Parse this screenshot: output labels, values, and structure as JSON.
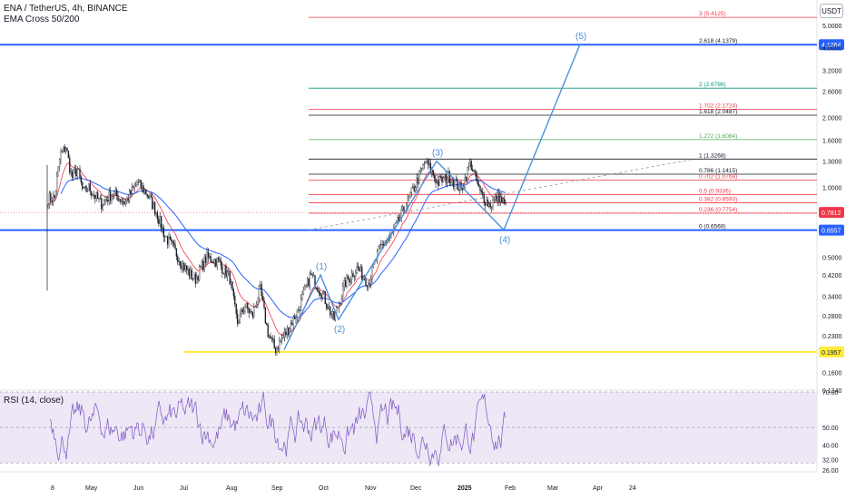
{
  "header": {
    "symbol": "ENA / TetherUS, 4h, BINANCE",
    "indicator": "EMA Cross 50/200"
  },
  "unit_badge": "USDT",
  "chart_data": [
    {
      "type": "candlestick",
      "title": "ENA / TetherUS, 4h, BINANCE",
      "yscale": "log",
      "ylim": [
        0.134,
        6.2
      ],
      "price_axis_ticks": [
        "5.0000",
        "4.0000",
        "3.2000",
        "2.6000",
        "2.0000",
        "1.6000",
        "1.3000",
        "1.0000",
        "0.5000",
        "0.4200",
        "0.3400",
        "0.2800",
        "0.2300",
        "0.1600",
        "0.1340"
      ],
      "x_ticks": [
        "8",
        "May",
        "Jun",
        "Jul",
        "Aug",
        "Sep",
        "Oct",
        "Nov",
        "Dec",
        "2025",
        "Feb",
        "Mar",
        "Apr",
        "24"
      ],
      "price_path": [
        [
          "8",
          0.9
        ],
        [
          "8",
          1.38
        ],
        [
          "8",
          1.5
        ],
        [
          "8",
          1.1
        ],
        [
          "8",
          1.2
        ],
        [
          "8",
          0.95
        ],
        [
          "May",
          1.0
        ],
        [
          "May",
          0.85
        ],
        [
          "May",
          0.95
        ],
        [
          "May",
          0.86
        ],
        [
          "Jun",
          1.05
        ],
        [
          "Jun",
          0.95
        ],
        [
          "Jun",
          0.8
        ],
        [
          "Jun",
          0.62
        ],
        [
          "Jun",
          0.54
        ],
        [
          "Jul",
          0.46
        ],
        [
          "Jul",
          0.4
        ],
        [
          "Jul",
          0.5
        ],
        [
          "Jul",
          0.48
        ],
        [
          "Aug",
          0.41
        ],
        [
          "Aug",
          0.26
        ],
        [
          "Aug",
          0.31
        ],
        [
          "Aug",
          0.28
        ],
        [
          "Aug",
          0.37
        ],
        [
          "Aug",
          0.24
        ],
        [
          "Sep",
          0.2
        ],
        [
          "Sep",
          0.24
        ],
        [
          "Sep",
          0.3
        ],
        [
          "Sep",
          0.42
        ],
        [
          "Oct",
          0.35
        ],
        [
          "Oct",
          0.27
        ],
        [
          "Oct",
          0.39
        ],
        [
          "Oct",
          0.45
        ],
        [
          "Nov",
          0.39
        ],
        [
          "Nov",
          0.55
        ],
        [
          "Nov",
          0.62
        ],
        [
          "Nov",
          0.78
        ],
        [
          "Dec",
          1.0
        ],
        [
          "Dec",
          1.3
        ],
        [
          "Dec",
          1.05
        ],
        [
          "Dec",
          1.12
        ],
        [
          "2025",
          0.98
        ],
        [
          "2025",
          1.28
        ],
        [
          "2025",
          0.95
        ],
        [
          "2025",
          0.84
        ],
        [
          "2025",
          0.92
        ],
        [
          "Feb",
          0.78
        ]
      ],
      "ema50_label": "EMA 50",
      "ema200_label": "EMA 200",
      "fib_levels": [
        {
          "label": "3 (5.4125)",
          "price": 5.4125,
          "color": "#f23645"
        },
        {
          "label": "2.618 (4.1379)",
          "price": 4.1379,
          "color": "#131722"
        },
        {
          "label": "2 (2.6798)",
          "price": 2.6798,
          "color": "#089981"
        },
        {
          "label": "1.702 (2.1724)",
          "price": 2.1724,
          "color": "#f23645"
        },
        {
          "label": "1.618 (2.0487)",
          "price": 2.0487,
          "color": "#131722"
        },
        {
          "label": "1.272 (1.6084)",
          "price": 1.6084,
          "color": "#4caf50"
        },
        {
          "label": "1 (1.3268)",
          "price": 1.3268,
          "color": "#131722"
        },
        {
          "label": "0.786 (1.1415)",
          "price": 1.1415,
          "color": "#131722"
        },
        {
          "label": "0.702 (1.0768)",
          "price": 1.0768,
          "color": "#f23645"
        },
        {
          "label": "0.5 (0.9336)",
          "price": 0.9336,
          "color": "#f23645"
        },
        {
          "label": "0.382 (0.8593)",
          "price": 0.8593,
          "color": "#f23645"
        },
        {
          "label": "0.236 (0.7754)",
          "price": 0.7754,
          "color": "#f23645"
        },
        {
          "label": "0 (0.6569)",
          "price": 0.6569,
          "color": "#131722"
        }
      ],
      "horizontal_levels": [
        {
          "label": "4.1264",
          "price": 4.1264,
          "color": "#2962ff"
        },
        {
          "label": "0.6557",
          "price": 0.6557,
          "color": "#2962ff"
        },
        {
          "label": "0.1957",
          "price": 0.1957,
          "color": "#ffeb3b"
        }
      ],
      "current_price": {
        "label": "0.7812",
        "price": 0.7812,
        "color": "#f23645"
      },
      "elliott_waves": [
        {
          "label": "(1)",
          "x": "Sep",
          "price": 0.42
        },
        {
          "label": "(2)",
          "x": "Oct",
          "price": 0.27
        },
        {
          "label": "(3)",
          "x": "Dec",
          "price": 1.3
        },
        {
          "label": "(4)",
          "x": "2025",
          "price": 0.6569
        },
        {
          "label": "(5)",
          "x": "Mar",
          "price": 4.1379
        }
      ]
    },
    {
      "type": "line",
      "title": "RSI (14, close)",
      "ylim": [
        26,
        70
      ],
      "y_ticks": [
        "70.00",
        "50.00",
        "40.00",
        "32.00",
        "26.00"
      ],
      "x_ticks": [
        "8",
        "May",
        "Jun",
        "Jul",
        "Aug",
        "Sep",
        "Oct",
        "Nov",
        "Dec",
        "2025",
        "Feb",
        "Mar",
        "Apr",
        "24"
      ]
    }
  ],
  "colors": {
    "candle_up": "#131722",
    "candle_down": "#131722",
    "wave_line": "#4a90d9",
    "ema_fast": "#f23645",
    "ema_slow": "#2962ff",
    "rsi_line": "#7e57c2",
    "rsi_band": "#ede7f6"
  },
  "rsi_title": "RSI (14, close)"
}
